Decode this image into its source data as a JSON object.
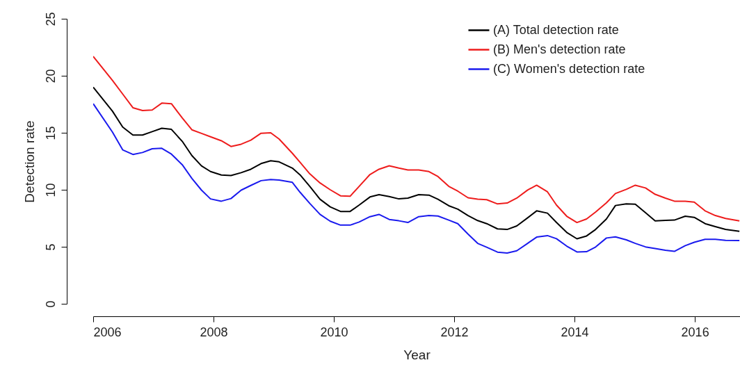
{
  "chart_data": {
    "type": "line",
    "xlabel": "Year",
    "ylabel": "Detection rate",
    "x": [
      2006,
      2006.32,
      2006.49,
      2006.66,
      2006.82,
      2006.98,
      2007.14,
      2007.3,
      2007.48,
      2007.64,
      2007.8,
      2007.95,
      2008.13,
      2008.29,
      2008.46,
      2008.62,
      2008.79,
      2008.95,
      2009.09,
      2009.31,
      2009.44,
      2009.6,
      2009.77,
      2009.94,
      2010.11,
      2010.27,
      2010.42,
      2010.6,
      2010.75,
      2010.92,
      2011.08,
      2011.23,
      2011.41,
      2011.58,
      2011.73,
      2011.91,
      2012.06,
      2012.23,
      2012.39,
      2012.54,
      2012.72,
      2012.88,
      2013.04,
      2013.22,
      2013.37,
      2013.55,
      2013.7,
      2013.87,
      2014.04,
      2014.2,
      2014.35,
      2014.53,
      2014.68,
      2014.86,
      2015.01,
      2015.18,
      2015.34,
      2015.51,
      2015.66,
      2015.84,
      2015.99,
      2016.17,
      2016.34,
      2016.51,
      2016.74
    ],
    "series": [
      {
        "name": "(A) Total detection rate",
        "color": "#000000",
        "values": [
          19.0,
          16.9,
          15.5,
          14.8,
          14.8,
          15.1,
          15.4,
          15.3,
          14.25,
          13.0,
          12.1,
          11.6,
          11.3,
          11.25,
          11.5,
          11.8,
          12.3,
          12.55,
          12.45,
          11.9,
          11.3,
          10.3,
          9.17,
          8.5,
          8.1,
          8.1,
          8.66,
          9.37,
          9.57,
          9.4,
          9.2,
          9.27,
          9.57,
          9.53,
          9.17,
          8.6,
          8.3,
          7.74,
          7.3,
          7.03,
          6.57,
          6.52,
          6.83,
          7.54,
          8.15,
          7.95,
          7.13,
          6.26,
          5.7,
          5.95,
          6.52,
          7.44,
          8.62,
          8.76,
          8.74,
          7.99,
          7.27,
          7.32,
          7.34,
          7.68,
          7.58,
          7.03,
          6.77,
          6.52,
          6.36
        ]
      },
      {
        "name": "(B) Men's detection rate",
        "color": "#ee1c1c",
        "values": [
          21.7,
          19.6,
          18.4,
          17.2,
          16.95,
          17.0,
          17.6,
          17.55,
          16.3,
          15.26,
          14.95,
          14.65,
          14.3,
          13.8,
          14.0,
          14.35,
          14.96,
          15.0,
          14.45,
          13.2,
          12.4,
          11.4,
          10.6,
          10.0,
          9.47,
          9.43,
          10.3,
          11.34,
          11.8,
          12.1,
          11.9,
          11.74,
          11.74,
          11.6,
          11.16,
          10.3,
          9.88,
          9.3,
          9.17,
          9.13,
          8.76,
          8.84,
          9.27,
          9.98,
          10.4,
          9.82,
          8.66,
          7.68,
          7.13,
          7.44,
          8.05,
          8.86,
          9.67,
          10.04,
          10.4,
          10.16,
          9.6,
          9.27,
          9.0,
          9.0,
          8.92,
          8.15,
          7.74,
          7.48,
          7.27
        ]
      },
      {
        "name": "(C) Women's detection rate",
        "color": "#1a1aee",
        "values": [
          17.55,
          15.06,
          13.5,
          13.1,
          13.27,
          13.6,
          13.64,
          13.13,
          12.2,
          11.0,
          9.97,
          9.2,
          9.0,
          9.23,
          9.97,
          10.38,
          10.8,
          10.9,
          10.85,
          10.65,
          9.77,
          8.8,
          7.84,
          7.24,
          6.9,
          6.9,
          7.17,
          7.64,
          7.84,
          7.4,
          7.28,
          7.13,
          7.64,
          7.74,
          7.7,
          7.34,
          7.03,
          6.11,
          5.3,
          4.96,
          4.53,
          4.45,
          4.65,
          5.3,
          5.85,
          5.98,
          5.71,
          5.06,
          4.55,
          4.57,
          4.98,
          5.77,
          5.87,
          5.61,
          5.3,
          4.99,
          4.85,
          4.7,
          4.6,
          5.1,
          5.4,
          5.65,
          5.65,
          5.57,
          5.55
        ]
      }
    ],
    "xlim": [
      2006,
      2016.75
    ],
    "xticks": [
      2006,
      2008,
      2010,
      2012,
      2014,
      2016
    ],
    "ylim": [
      0,
      25
    ],
    "yticks": [
      0,
      5,
      10,
      15,
      20,
      25
    ],
    "grid": false,
    "legend": "top right",
    "marker": "none",
    "line_style": "solid"
  }
}
